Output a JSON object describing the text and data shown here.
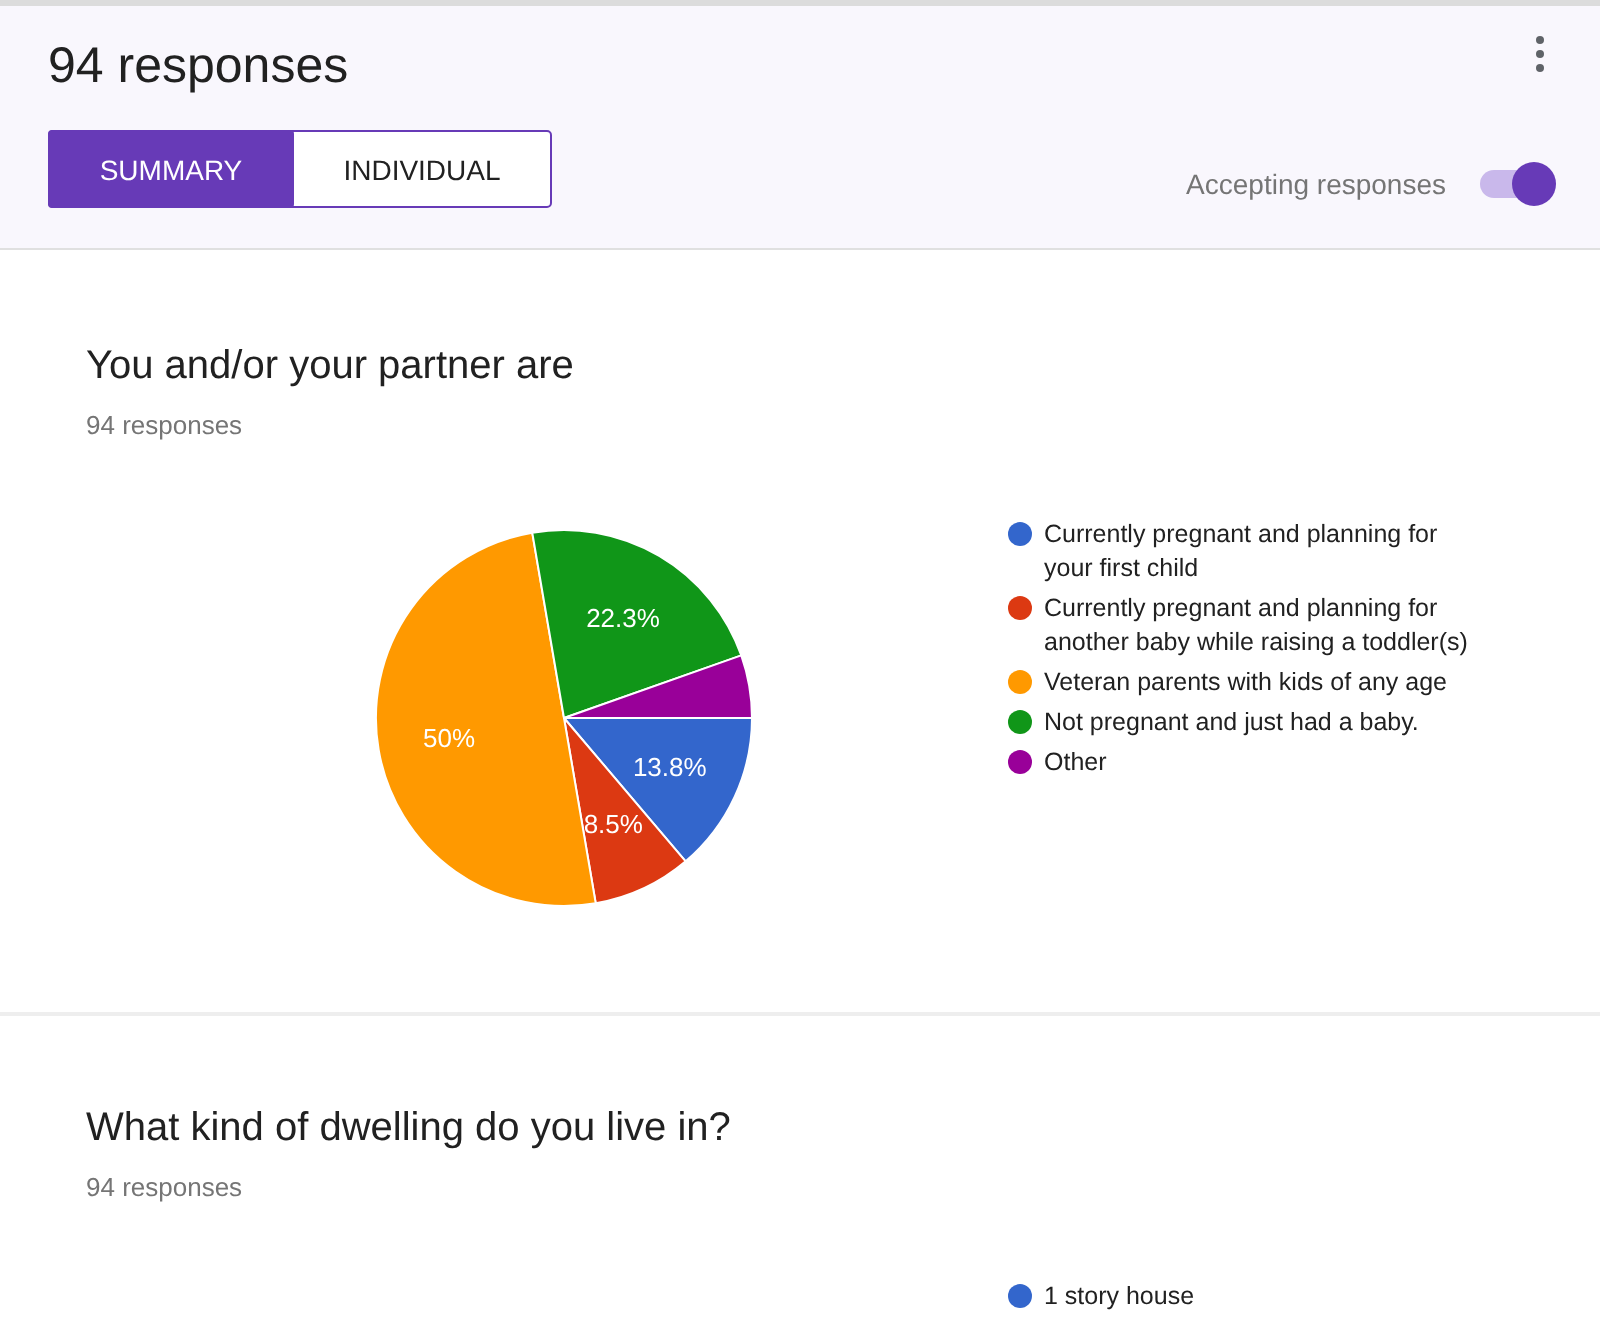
{
  "chart_data": [
    {
      "type": "other",
      "title": "94 responses",
      "annotations": [
        "SUMMARY",
        "INDIVIDUAL",
        "Accepting responses"
      ]
    },
    {
      "type": "pie",
      "title": "You and/or your partner are",
      "subtitle": "94 responses",
      "categories": [
        "Currently pregnant and planning for your first child",
        "Currently pregnant and planning for another baby while raising a toddler(s)",
        "Veteran parents with kids of any age",
        "Not pregnant and just had a baby.",
        "Other"
      ],
      "values": [
        13.8,
        8.5,
        50,
        22.3,
        5.4
      ],
      "colors": [
        "#3366cc",
        "#dc3912",
        "#ff9900",
        "#109618",
        "#990099"
      ],
      "value_labels": [
        "13.8%",
        "8.5%",
        "50%",
        "22.3%",
        null
      ],
      "legend": "right"
    },
    {
      "type": "other",
      "title": "What kind of dwelling do you live in?",
      "subtitle": "94 responses",
      "annotations": [
        "1 story house"
      ]
    }
  ]
}
